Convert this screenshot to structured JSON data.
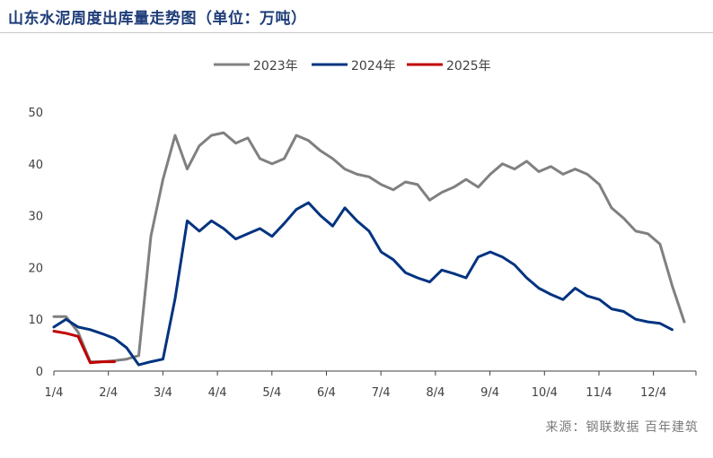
{
  "title": "山东水泥周度出库量走势图（单位：万吨）",
  "source": "来源：钢联数据 百年建筑",
  "chart_data": {
    "type": "line",
    "x_ticks": [
      "1/4",
      "2/4",
      "3/4",
      "4/4",
      "5/4",
      "6/4",
      "7/4",
      "8/4",
      "9/4",
      "10/4",
      "11/4",
      "12/4"
    ],
    "y_ticks": [
      0,
      10,
      20,
      30,
      40,
      50
    ],
    "ylim": [
      0,
      50
    ],
    "legend_position": "top-center",
    "series": [
      {
        "name": "2023年",
        "color": "#808080",
        "values": [
          10.5,
          10.5,
          7.5,
          1.8,
          1.8,
          2.0,
          2.3,
          3.0,
          26.0,
          37.0,
          45.5,
          39.0,
          43.5,
          45.5,
          46.0,
          44.0,
          45.0,
          41.0,
          40.0,
          41.0,
          45.5,
          44.5,
          42.5,
          41.0,
          39.0,
          38.0,
          37.5,
          36.0,
          35.0,
          36.5,
          36.0,
          33.0,
          34.5,
          35.5,
          37.0,
          35.5,
          38.0,
          40.0,
          39.0,
          40.5,
          38.5,
          39.5,
          38.0,
          39.0,
          38.0,
          36.0,
          31.5,
          29.5,
          27.0,
          26.5,
          24.5,
          16.5,
          9.5
        ]
      },
      {
        "name": "2024年",
        "color": "#003380",
        "values": [
          8.5,
          10.0,
          8.5,
          8.0,
          7.2,
          6.3,
          4.5,
          1.2,
          1.8,
          2.3,
          14.0,
          29.0,
          27.0,
          29.0,
          27.5,
          25.5,
          26.5,
          27.5,
          26.0,
          28.5,
          31.2,
          32.5,
          30.0,
          28.0,
          31.5,
          29.0,
          27.0,
          23.0,
          21.5,
          19.0,
          18.0,
          17.2,
          19.5,
          18.8,
          18.0,
          22.0,
          23.0,
          22.0,
          20.5,
          18.0,
          16.0,
          14.8,
          13.8,
          16.0,
          14.5,
          13.8,
          12.0,
          11.5,
          10.0,
          9.5,
          9.2,
          8.0
        ]
      },
      {
        "name": "2025年",
        "color": "#c00000",
        "values": [
          7.7,
          7.3,
          6.7,
          1.6,
          1.8,
          1.8
        ]
      }
    ]
  }
}
